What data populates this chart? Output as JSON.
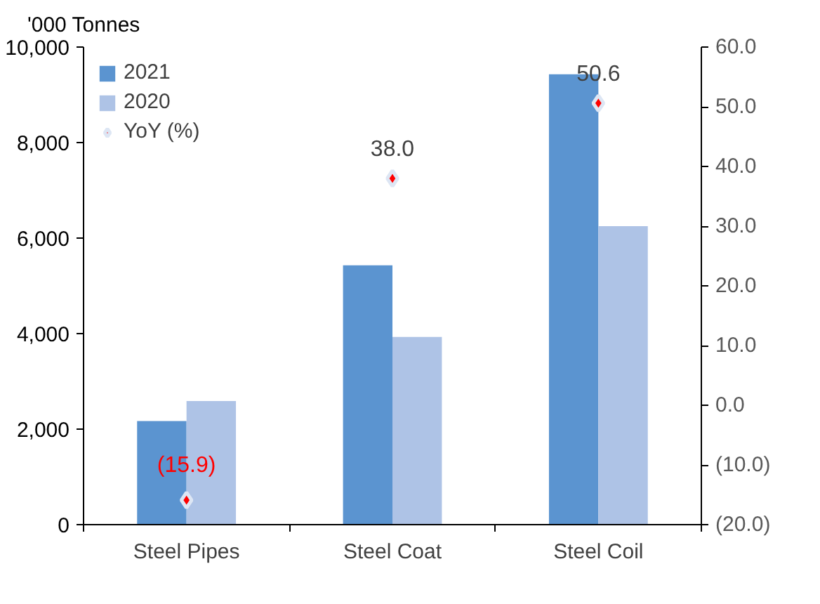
{
  "chart_data": {
    "type": "bar",
    "ylabel": "'000 Tonnes",
    "categories": [
      "Steel Pipes",
      "Steel Coat",
      "Steel Coil"
    ],
    "series": [
      {
        "name": "2021",
        "color": "#5b94d0",
        "values": [
          2170,
          5430,
          9430
        ]
      },
      {
        "name": "2020",
        "color": "#aec3e6",
        "values": [
          2590,
          3930,
          6250
        ]
      },
      {
        "name": "YoY (%)",
        "type": "scatter",
        "axis": "y2",
        "color": "#ff0000",
        "marker": "diamond",
        "values": [
          -15.9,
          38.0,
          50.6
        ],
        "value_labels": [
          "(15.9)",
          "38.0",
          "50.6"
        ]
      }
    ],
    "ylim": [
      0,
      10000
    ],
    "yticks": [
      0,
      {
        "value": 2000,
        "label": "2,000"
      },
      {
        "value": 4000,
        "label": "4,000"
      },
      {
        "value": 6000,
        "label": "6,000"
      },
      {
        "value": 8000,
        "label": "8,000"
      },
      {
        "value": 10000,
        "label": "10,000"
      }
    ],
    "y2lim": [
      -20,
      60
    ],
    "y2ticks": [
      {
        "value": -20,
        "label": "(20.0)"
      },
      {
        "value": -10,
        "label": "(10.0)"
      },
      {
        "value": 0,
        "label": "0.0"
      },
      {
        "value": 10,
        "label": "10.0"
      },
      {
        "value": 20,
        "label": "20.0"
      },
      {
        "value": 30,
        "label": "30.0"
      },
      {
        "value": 40,
        "label": "40.0"
      },
      {
        "value": 50,
        "label": "50.0"
      },
      {
        "value": 60,
        "label": "60.0"
      }
    ],
    "grid": false,
    "legend": "top"
  }
}
